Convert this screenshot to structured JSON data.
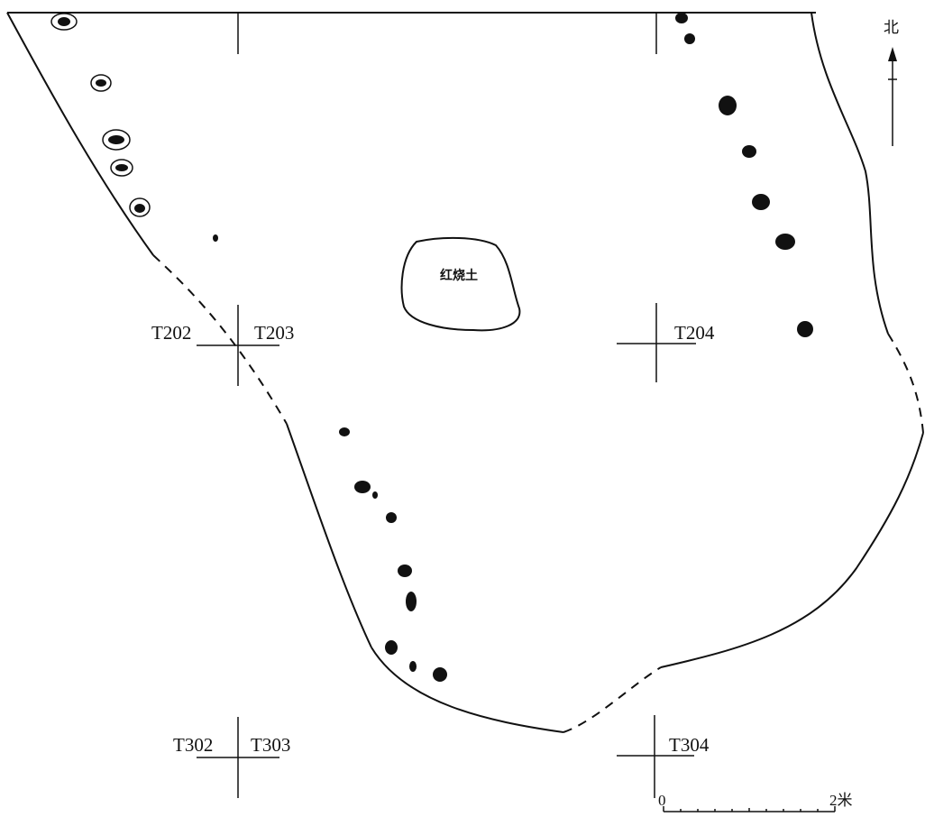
{
  "north_label": "北",
  "feature_label": "红烧土",
  "grid_labels": [
    "T202",
    "T203",
    "T204",
    "T302",
    "T303",
    "T304"
  ],
  "scale": {
    "start": "0",
    "end": "2米"
  },
  "colors": {
    "ink": "#111111",
    "paper": "#ffffff"
  }
}
